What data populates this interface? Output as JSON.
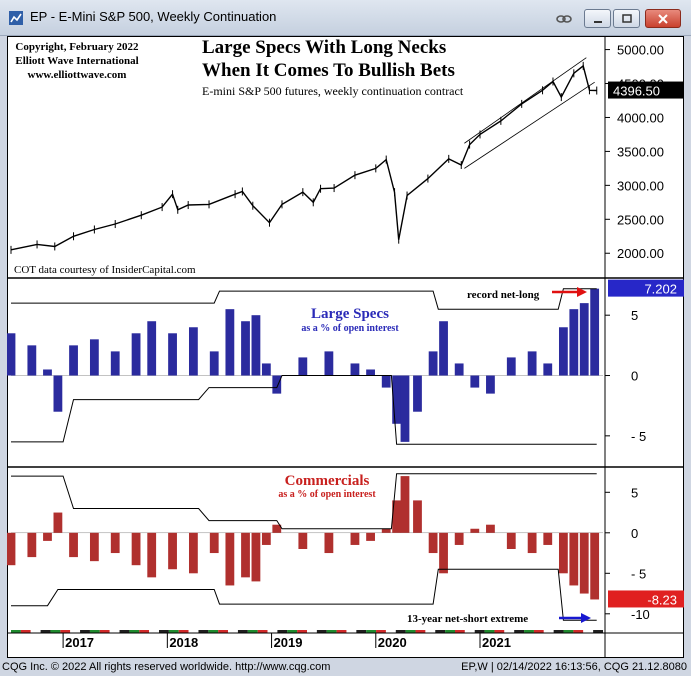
{
  "window": {
    "title": "EP - E-Mini S&P 500, Weekly Continuation",
    "buttons": {
      "link": "link-icon",
      "minimize": "minimize-icon",
      "maximize": "maximize-icon",
      "close": "close-icon"
    }
  },
  "status_bar": {
    "left": "CQG Inc. © 2022 All rights reserved worldwide. http://www.cqg.com",
    "right": "EP,W | 02/14/2022 16:13:56, CQG 21.12.8080"
  },
  "colors": {
    "price": "#000000",
    "specs": "#2b2b9e",
    "commercials": "#b0302e",
    "specs_value_bg": "#2727c8",
    "commercials_value_bg": "#e02020",
    "price_value_bg": "#000000"
  },
  "chart_data": [
    {
      "type": "line",
      "panel": "price",
      "title_lines": [
        "Large Specs With Long Necks",
        "When It Comes To Bullish Bets"
      ],
      "subtitle": "E-mini S&P 500 futures, weekly continuation contract",
      "copyright_lines": [
        "Copyright, February 2022",
        "Elliott Wave International",
        "www.elliottwave.com"
      ],
      "credit": "COT data courtesy of InsiderCapital.com",
      "y_ticks": [
        "5000.00",
        "4500.00",
        "4000.00",
        "3500.00",
        "3000.00",
        "2500.00",
        "2000.00"
      ],
      "ylim": [
        1650,
        5200
      ],
      "last_value": "4396.50",
      "x": [
        2016.5,
        2016.75,
        2016.92,
        2017.1,
        2017.3,
        2017.5,
        2017.75,
        2017.95,
        2018.05,
        2018.1,
        2018.2,
        2018.4,
        2018.65,
        2018.72,
        2018.82,
        2018.98,
        2019.1,
        2019.3,
        2019.4,
        2019.47,
        2019.6,
        2019.8,
        2020.0,
        2020.1,
        2020.18,
        2020.22,
        2020.3,
        2020.5,
        2020.7,
        2020.82,
        2020.9,
        2021.0,
        2021.2,
        2021.4,
        2021.6,
        2021.7,
        2021.78,
        2021.9,
        2021.99,
        2022.05,
        2022.12
      ],
      "y": [
        2050,
        2130,
        2100,
        2250,
        2350,
        2430,
        2560,
        2680,
        2870,
        2640,
        2710,
        2720,
        2870,
        2910,
        2700,
        2450,
        2720,
        2900,
        2750,
        2950,
        2960,
        3150,
        3250,
        3380,
        2900,
        2200,
        2850,
        3100,
        3390,
        3300,
        3600,
        3750,
        3950,
        4200,
        4400,
        4530,
        4300,
        4650,
        4760,
        4400,
        4396.5
      ],
      "channel": {
        "upper": [
          [
            2020.85,
            3620
          ],
          [
            2022.02,
            4880
          ]
        ],
        "lower": [
          [
            2020.85,
            3250
          ],
          [
            2022.1,
            4520
          ]
        ]
      }
    },
    {
      "type": "bar",
      "panel": "large_specs",
      "title": "Large Specs",
      "subtitle": "as a % of open interest",
      "annotation": "record net-long",
      "y_ticks": [
        "5",
        "0",
        "- 5"
      ],
      "ylim": [
        -7.5,
        8
      ],
      "last_value": "7.202",
      "x": [
        2016.5,
        2016.7,
        2016.85,
        2016.95,
        2017.1,
        2017.3,
        2017.5,
        2017.7,
        2017.85,
        2018.05,
        2018.25,
        2018.45,
        2018.6,
        2018.75,
        2018.85,
        2018.95,
        2019.05,
        2019.3,
        2019.55,
        2019.8,
        2019.95,
        2020.1,
        2020.2,
        2020.28,
        2020.4,
        2020.55,
        2020.65,
        2020.8,
        2020.95,
        2021.1,
        2021.3,
        2021.5,
        2021.65,
        2021.8,
        2021.9,
        2022.0,
        2022.1
      ],
      "values": [
        3.5,
        2.5,
        0.5,
        -3.0,
        2.5,
        3.0,
        2.0,
        3.5,
        4.5,
        3.5,
        4.0,
        2.0,
        5.5,
        4.5,
        5.0,
        1.0,
        -1.5,
        1.5,
        2.0,
        1.0,
        0.5,
        -1.0,
        -4.0,
        -5.5,
        -3.0,
        2.0,
        4.5,
        1.0,
        -1.0,
        -1.5,
        1.5,
        2.0,
        1.0,
        4.0,
        5.5,
        6.0,
        7.2
      ],
      "envelope": {
        "upper": [
          [
            2016.5,
            6.0
          ],
          [
            2018.45,
            6.0
          ],
          [
            2018.5,
            7.0
          ],
          [
            2020.55,
            7.0
          ],
          [
            2020.6,
            5.5
          ],
          [
            2021.75,
            5.5
          ],
          [
            2021.8,
            7.2
          ],
          [
            2022.12,
            7.2
          ]
        ],
        "lower": [
          [
            2016.5,
            -5.5
          ],
          [
            2017.0,
            -5.5
          ],
          [
            2017.1,
            -2.0
          ],
          [
            2018.3,
            -2.0
          ],
          [
            2018.4,
            -1.0
          ],
          [
            2019.05,
            -1.0
          ],
          [
            2019.1,
            0.0
          ],
          [
            2020.15,
            0.0
          ],
          [
            2020.2,
            -5.7
          ],
          [
            2022.12,
            -5.7
          ]
        ]
      }
    },
    {
      "type": "bar",
      "panel": "commercials",
      "title": "Commercials",
      "subtitle": "as a % of open interest",
      "annotation": "13-year net-short extreme",
      "y_ticks": [
        "5",
        "0",
        "- 5",
        "-10"
      ],
      "ylim": [
        -12,
        8
      ],
      "last_value": "-8.23",
      "x": [
        2016.5,
        2016.7,
        2016.85,
        2016.95,
        2017.1,
        2017.3,
        2017.5,
        2017.7,
        2017.85,
        2018.05,
        2018.25,
        2018.45,
        2018.6,
        2018.75,
        2018.85,
        2018.95,
        2019.05,
        2019.3,
        2019.55,
        2019.8,
        2019.95,
        2020.1,
        2020.2,
        2020.28,
        2020.4,
        2020.55,
        2020.65,
        2020.8,
        2020.95,
        2021.1,
        2021.3,
        2021.5,
        2021.65,
        2021.8,
        2021.9,
        2022.0,
        2022.1
      ],
      "values": [
        -4.0,
        -3.0,
        -1.0,
        2.5,
        -3.0,
        -3.5,
        -2.5,
        -4.0,
        -5.5,
        -4.5,
        -5.0,
        -2.5,
        -6.5,
        -5.5,
        -6.0,
        -1.5,
        1.0,
        -2.0,
        -2.5,
        -1.5,
        -1.0,
        0.5,
        4.0,
        7.0,
        4.0,
        -2.5,
        -5.0,
        -1.5,
        0.5,
        1.0,
        -2.0,
        -2.5,
        -1.5,
        -5.0,
        -6.5,
        -7.5,
        -8.23
      ],
      "envelope": {
        "upper": [
          [
            2016.5,
            7.0
          ],
          [
            2017.0,
            7.0
          ],
          [
            2017.1,
            3.0
          ],
          [
            2018.3,
            3.0
          ],
          [
            2018.4,
            1.5
          ],
          [
            2019.05,
            1.5
          ],
          [
            2019.1,
            0.5
          ],
          [
            2020.15,
            0.5
          ],
          [
            2020.2,
            7.3
          ],
          [
            2022.12,
            7.3
          ]
        ],
        "lower": [
          [
            2016.5,
            -9.0
          ],
          [
            2016.85,
            -9.0
          ],
          [
            2016.95,
            -7.0
          ],
          [
            2018.45,
            -7.0
          ],
          [
            2018.5,
            -8.8
          ],
          [
            2020.55,
            -8.8
          ],
          [
            2020.6,
            -4.5
          ],
          [
            2021.75,
            -4.5
          ],
          [
            2021.8,
            -10.8
          ],
          [
            2022.12,
            -10.8
          ]
        ]
      }
    }
  ],
  "x_axis": {
    "year_labels": [
      "2017",
      "2018",
      "2019",
      "2020",
      "2021"
    ],
    "year_positions": [
      2017,
      2018,
      2019,
      2020,
      2021
    ],
    "xlim": [
      2016.5,
      2022.18
    ]
  }
}
